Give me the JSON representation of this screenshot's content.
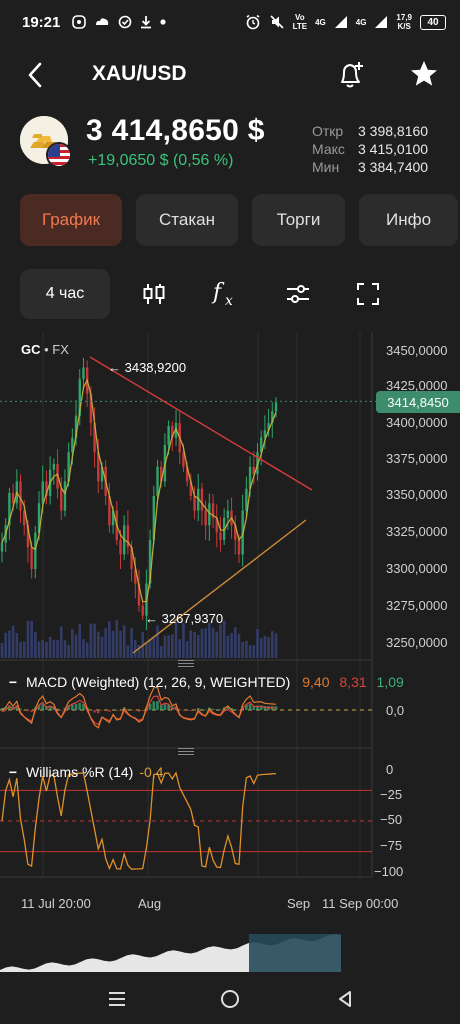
{
  "status_bar": {
    "time": "19:21",
    "net1_top": "Vo",
    "net1_bottom": "LTE",
    "net2": "4G",
    "net3": "4G",
    "speed_top": "17,9",
    "speed_bottom": "K/S",
    "battery": "40",
    "left_icons": [
      "viber-icon",
      "cloud-icon",
      "check-circle-icon",
      "download-icon",
      "dot-icon"
    ],
    "right_icons": [
      "alarm-icon",
      "mute-icon",
      "signal-icon",
      "signal-icon",
      "battery-icon"
    ]
  },
  "header": {
    "symbol": "XAU/USD",
    "back_icon": "chevron-left-icon",
    "alert_icon": "bell-plus-icon",
    "favorite_icon": "star-icon"
  },
  "quote": {
    "price": "3 414,8650 $",
    "change": "+19,0650 $ (0,56 %)",
    "change_color": "#3bc27a",
    "ohl": [
      {
        "label": "Откр",
        "value": "3 398,8160"
      },
      {
        "label": "Макс",
        "value": "3 415,0100"
      },
      {
        "label": "Мин",
        "value": "3 384,7400"
      }
    ]
  },
  "tabs": [
    {
      "label": "График",
      "active": true
    },
    {
      "label": "Стакан",
      "active": false
    },
    {
      "label": "Торги",
      "active": false
    },
    {
      "label": "Инфо",
      "active": false
    }
  ],
  "toolbar": {
    "timeframe": "4 час",
    "icons": [
      "candlestick-icon",
      "function-icon",
      "settings-sliders-icon",
      "fullscreen-icon"
    ]
  },
  "chart": {
    "symbol_label": "GC",
    "exchange_label": "FX",
    "current_price_tag": "3414,8450",
    "high_annotation": "← 3438,9200",
    "low_annotation": "← 3267,9370",
    "y_axis_labels": [
      "3450,0000",
      "3425,0000",
      "3400,0000",
      "3375,0000",
      "3350,0000",
      "3325,0000",
      "3300,0000",
      "3275,0000",
      "3250,0000"
    ],
    "x_axis_labels": [
      "11 Jul 20:00",
      "Aug",
      "Sep",
      "11 Sep 00:00"
    ],
    "accent_color": "#3d8c6e",
    "up_color": "#2fa56a",
    "down_color": "#c83a3a"
  },
  "chart_data": {
    "type": "candlestick",
    "instrument": "XAU/USD",
    "timeframe": "4 час",
    "y_range": [
      3240,
      3460
    ],
    "last_price": 3414.845,
    "annotated_high": 3438.92,
    "annotated_low": 3267.937,
    "close_series": [
      3318,
      3330,
      3352,
      3345,
      3360,
      3340,
      3330,
      3315,
      3300,
      3325,
      3345,
      3360,
      3350,
      3368,
      3372,
      3355,
      3340,
      3360,
      3380,
      3390,
      3405,
      3430,
      3438,
      3420,
      3400,
      3380,
      3360,
      3370,
      3350,
      3330,
      3340,
      3320,
      3310,
      3330,
      3315,
      3300,
      3290,
      3275,
      3268,
      3290,
      3320,
      3350,
      3370,
      3360,
      3385,
      3398,
      3390,
      3400,
      3380,
      3370,
      3360,
      3350,
      3340,
      3355,
      3340,
      3330,
      3345,
      3335,
      3325,
      3320,
      3335,
      3340,
      3330,
      3320,
      3310,
      3340,
      3355,
      3370,
      3365,
      3380,
      3390,
      3395,
      3400,
      3408,
      3414
    ]
  },
  "macd": {
    "title": "MACD (Weighted) (12, 26, 9, WEIGHTED)",
    "v1": "9,40",
    "v2": "8,31",
    "v3": "1,09",
    "c1": "#e07a2e",
    "c2": "#d9443a",
    "c3": "#3bb27a",
    "axis_label": "0,0"
  },
  "williams": {
    "title": "Williams %R (14)",
    "value": "-0,4",
    "value_color": "#e0a030",
    "axis_labels": [
      "0",
      "−25",
      "−50",
      "−75",
      "−100"
    ]
  },
  "navbar": {
    "icons": [
      "menu-icon",
      "home-circle-icon",
      "back-triangle-icon"
    ]
  }
}
